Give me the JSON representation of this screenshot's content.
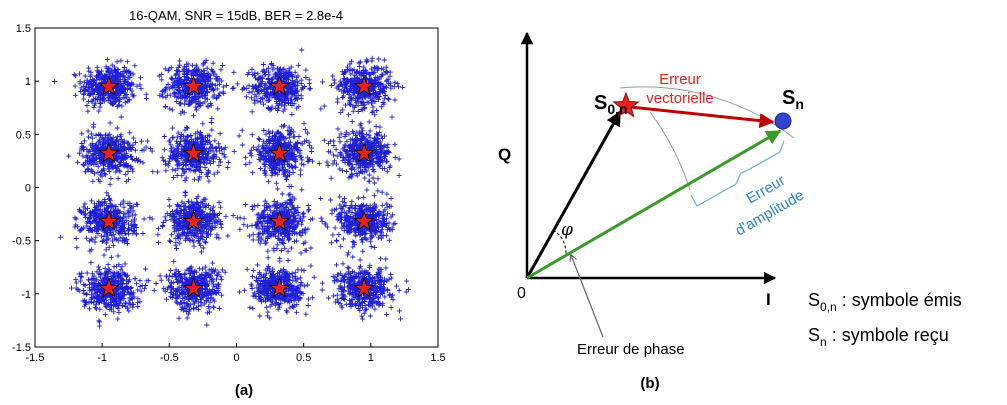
{
  "panel_a": {
    "caption": "(a)"
  },
  "panel_b": {
    "caption": "(b)",
    "axis_q": "Q",
    "axis_i": "I",
    "origin": "0",
    "phi": "φ",
    "s0n_base": "S",
    "s0n_sub": "0,n",
    "sn_base": "S",
    "sn_sub": "n",
    "err_vect_line1": "Erreur",
    "err_vect_line2": "vectorielle",
    "err_amp_line1": "Erreur",
    "err_amp_line2": "d'amplitude",
    "err_phase": "Erreur de phase",
    "legend1_base": "S",
    "legend1_sub": "0,n",
    "legend1_text": " : symbole émis",
    "legend2_base": "S",
    "legend2_sub": "n",
    "legend2_text": " : symbole reçu"
  },
  "colors": {
    "noise": "#1f1fd6",
    "star_fill": "#e8211b",
    "vector_black": "#000000",
    "vector_red": "#c00000",
    "vector_green": "#3a9a2a",
    "amplitude_blue": "#2e86c1",
    "received_point": "#3344cc"
  },
  "chart_data": {
    "type": "scatter",
    "title": "16-QAM, SNR = 15dB, BER = 2.8e-4",
    "xlabel": "",
    "ylabel": "",
    "xlim": [
      -1.5,
      1.5
    ],
    "ylim": [
      -1.5,
      1.5
    ],
    "xticks": [
      "-1.5",
      "-1",
      "-0.5",
      "0",
      "0.5",
      "1",
      "1.5"
    ],
    "yticks": [
      "-1.5",
      "-1",
      "-0.5",
      "0",
      "0.5",
      "1",
      "1.5"
    ],
    "grid": false,
    "series": [
      {
        "marker": "star",
        "points": [
          [
            -0.95,
            0.95
          ],
          [
            -0.32,
            0.95
          ],
          [
            0.32,
            0.95
          ],
          [
            0.95,
            0.95
          ],
          [
            -0.95,
            0.32
          ],
          [
            -0.32,
            0.32
          ],
          [
            0.32,
            0.32
          ],
          [
            0.95,
            0.32
          ],
          [
            -0.95,
            -0.32
          ],
          [
            -0.32,
            -0.32
          ],
          [
            0.32,
            -0.32
          ],
          [
            0.95,
            -0.32
          ],
          [
            -0.95,
            -0.95
          ],
          [
            -0.32,
            -0.95
          ],
          [
            0.32,
            -0.95
          ],
          [
            0.95,
            -0.95
          ]
        ]
      }
    ],
    "noise": {
      "sigma": 0.1,
      "points_per_symbol": 420
    }
  }
}
